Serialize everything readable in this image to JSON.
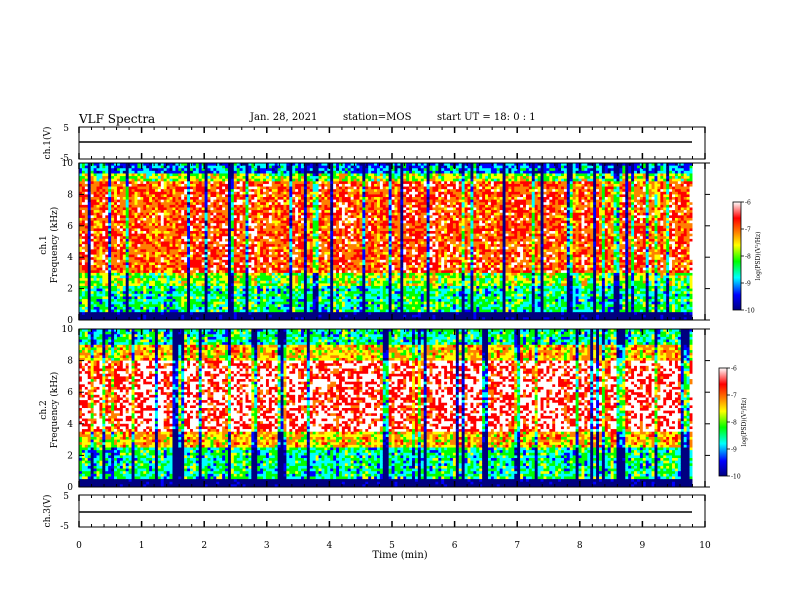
{
  "header": {
    "title": "VLF Spectra",
    "date": "Jan. 28, 2021",
    "station": "station=MOS",
    "start_time": "start  UT =   18: 0  : 1"
  },
  "chart_data": [
    {
      "type": "line",
      "panel": "ch1-waveform",
      "ylabel": "ch.1(V)",
      "ylim": [
        -5,
        5
      ],
      "yticks": [
        "5",
        "-5"
      ],
      "series": [
        {
          "values_description": "flat trace near 0 V",
          "x": [
            0,
            9.8
          ],
          "y": [
            0,
            0
          ]
        }
      ]
    },
    {
      "type": "heatmap",
      "panel": "ch1-spectrogram",
      "ylabel": "ch.1\nFrequency (kHz)",
      "ylabel_line1": "ch.1",
      "ylabel_line2": "Frequency (kHz)",
      "ylim": [
        0,
        10
      ],
      "yticks": [
        "0",
        "2",
        "4",
        "6",
        "8",
        "10"
      ],
      "xlim": [
        0,
        10
      ],
      "colorbar": {
        "label": "log(PSD)(V²/Hz)",
        "ticks": [
          "-6",
          "-7",
          "-8",
          "-9",
          "-10"
        ],
        "range": [
          -10,
          -6
        ]
      },
      "bands_khz": [
        {
          "from": 0,
          "to": 0.5,
          "level": -10
        },
        {
          "from": 0.5,
          "to": 2.2,
          "level": -8.5
        },
        {
          "from": 2.2,
          "to": 3.0,
          "level": -8
        },
        {
          "from": 3.0,
          "to": 8.8,
          "level": -7
        },
        {
          "from": 8.8,
          "to": 9.4,
          "level": -8
        },
        {
          "from": 9.4,
          "to": 10,
          "level": -9
        }
      ]
    },
    {
      "type": "heatmap",
      "panel": "ch2-spectrogram",
      "ylabel_line1": "ch.2",
      "ylabel_line2": "Frequency (kHz)",
      "ylim": [
        0,
        10
      ],
      "yticks": [
        "0",
        "2",
        "4",
        "6",
        "8",
        "10"
      ],
      "xlim": [
        0,
        10
      ],
      "colorbar": {
        "label": "log(PSD)(V²/Hz)",
        "ticks": [
          "-6",
          "-7",
          "-8",
          "-9",
          "-10"
        ],
        "range": [
          -10,
          -6
        ]
      },
      "bands_khz": [
        {
          "from": 0,
          "to": 0.5,
          "level": -10
        },
        {
          "from": 0.5,
          "to": 2.5,
          "level": -8.5
        },
        {
          "from": 2.5,
          "to": 3.5,
          "level": -7.5
        },
        {
          "from": 3.5,
          "to": 8.0,
          "level": -6.5
        },
        {
          "from": 8.0,
          "to": 9.0,
          "level": -7.5
        },
        {
          "from": 9.0,
          "to": 10,
          "level": -8.5
        }
      ]
    },
    {
      "type": "line",
      "panel": "ch3-waveform",
      "ylabel": "ch.3(V)",
      "ylim": [
        -5,
        5
      ],
      "yticks": [
        "5",
        "-5"
      ],
      "series": [
        {
          "values_description": "flat trace near 0 V",
          "x": [
            0,
            9.8
          ],
          "y": [
            0,
            0
          ]
        }
      ]
    }
  ],
  "xaxis": {
    "label": "Time  (min)",
    "ticks": [
      "0",
      "1",
      "2",
      "3",
      "4",
      "5",
      "6",
      "7",
      "8",
      "9",
      "10"
    ],
    "xlim": [
      0,
      10
    ]
  },
  "colors": {
    "colormap": [
      "#000080",
      "#0000ff",
      "#00ffff",
      "#00ff00",
      "#ffff00",
      "#ff8000",
      "#ff0000",
      "#ffffff"
    ]
  }
}
